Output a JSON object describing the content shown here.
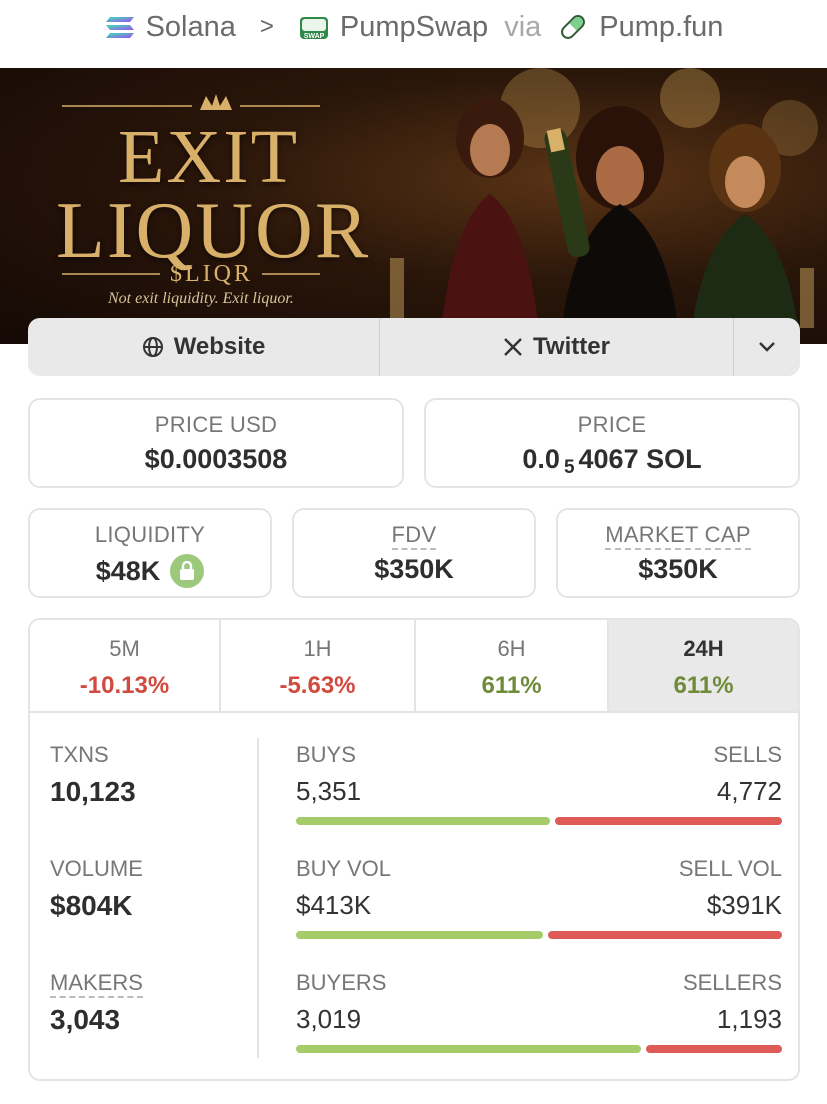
{
  "breadcrumb": {
    "chain": "Solana",
    "separator": ">",
    "dex": "PumpSwap",
    "via": "via",
    "launchpad": "Pump.fun"
  },
  "banner": {
    "title_line1": "EXIT",
    "title_line2": "LIQUOR",
    "ticker": "$LIQR",
    "tagline": "Not exit liquidity. Exit liquor."
  },
  "links": {
    "website": "Website",
    "twitter": "Twitter"
  },
  "price_usd": {
    "label": "PRICE USD",
    "value": "$0.0003508"
  },
  "price_native": {
    "label": "PRICE",
    "lead": "0.0",
    "zeros": "5",
    "tail": "4067 SOL"
  },
  "liquidity": {
    "label": "LIQUIDITY",
    "value": "$48K"
  },
  "fdv": {
    "label": "FDV",
    "value": "$350K"
  },
  "market_cap": {
    "label": "MARKET CAP",
    "value": "$350K"
  },
  "timeframes": [
    {
      "label": "5M",
      "change": "-10.13%"
    },
    {
      "label": "1H",
      "change": "-5.63%"
    },
    {
      "label": "6H",
      "change": "611%"
    },
    {
      "label": "24H",
      "change": "611%"
    }
  ],
  "active_timeframe": "24H",
  "txns": {
    "label": "TXNS",
    "value": "10,123",
    "buys_label": "BUYS",
    "buys": "5,351",
    "sells_label": "SELLS",
    "sells": "4,772"
  },
  "volume": {
    "label": "VOLUME",
    "value": "$804K",
    "buy_label": "BUY VOL",
    "buy": "$413K",
    "sell_label": "SELL VOL",
    "sell": "$391K"
  },
  "makers": {
    "label": "MAKERS",
    "value": "3,043",
    "buyers_label": "BUYERS",
    "buyers": "3,019",
    "sellers_label": "SELLERS",
    "sellers": "1,193"
  },
  "colors": {
    "positive": "#6f8b3a",
    "negative": "#d24a3e",
    "buy_bar": "#a6cc6a",
    "sell_bar": "#de5b57"
  }
}
